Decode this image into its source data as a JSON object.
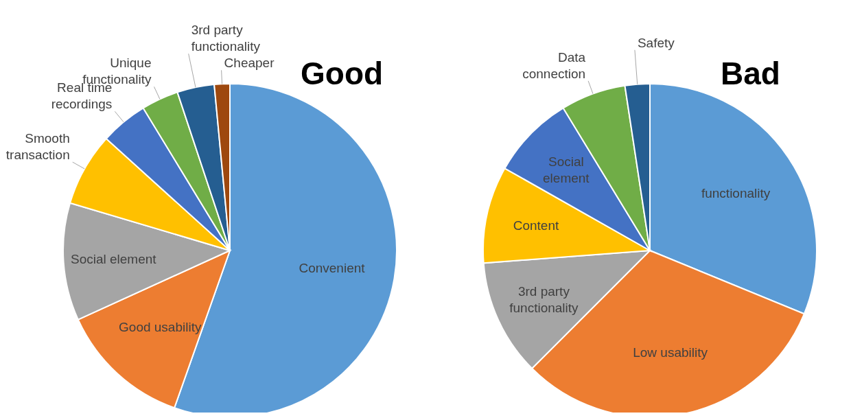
{
  "chart_data": [
    {
      "type": "pie",
      "title": "Good",
      "categories": [
        "Convenient",
        "Good usability",
        "Social element",
        "Smooth transaction",
        "Real time recordings",
        "Unique functionality",
        "3rd party functionality",
        "Cheaper"
      ],
      "values": [
        55.4,
        12.8,
        11.4,
        7.1,
        4.6,
        3.6,
        3.6,
        1.5
      ],
      "colors": [
        "#5b9bd5",
        "#ed7d31",
        "#a5a5a5",
        "#ffc000",
        "#4472c4",
        "#70ad47",
        "#255e91",
        "#9e480e"
      ]
    },
    {
      "type": "pie",
      "title": "Bad",
      "categories": [
        "functionality",
        "Low usability",
        "3rd party functionality",
        "Content",
        "Social element",
        "Data connection",
        "Safety"
      ],
      "values": [
        31.2,
        31.3,
        11.3,
        9.4,
        8.1,
        6.3,
        2.4
      ],
      "colors": [
        "#5b9bd5",
        "#ed7d31",
        "#a5a5a5",
        "#ffc000",
        "#4472c4",
        "#70ad47",
        "#255e91"
      ]
    }
  ]
}
